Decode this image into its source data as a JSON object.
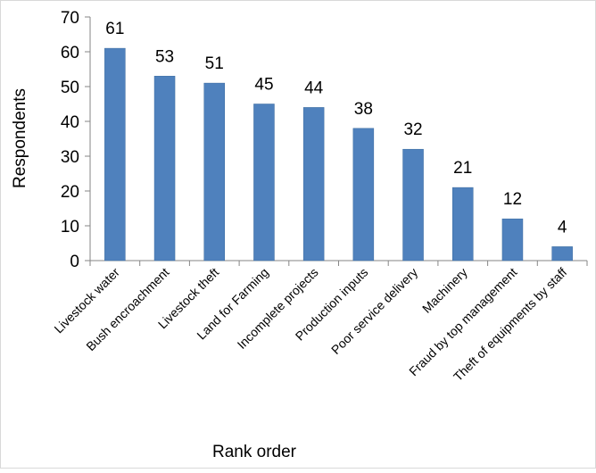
{
  "chart_data": {
    "type": "bar",
    "categories": [
      "Livestock water",
      "Bush encroachment",
      "Livestock theft",
      "Land for Farming",
      "Incomplete projects",
      "Production inputs",
      "Poor service delivery",
      "Machinery",
      "Fraud by top management",
      "Theft of equipments by staff"
    ],
    "values": [
      61,
      53,
      51,
      45,
      44,
      38,
      32,
      21,
      12,
      4
    ],
    "title": "",
    "xlabel": "Rank order",
    "ylabel": "Respondents",
    "ylim": [
      0,
      70
    ],
    "yticks": [
      0,
      10,
      20,
      30,
      40,
      50,
      60,
      70
    ],
    "grid": false,
    "legend": "none",
    "bar_color": "#4F81BD",
    "bar_edge_color": "#3A6A9E",
    "axis_color": "#868686"
  }
}
